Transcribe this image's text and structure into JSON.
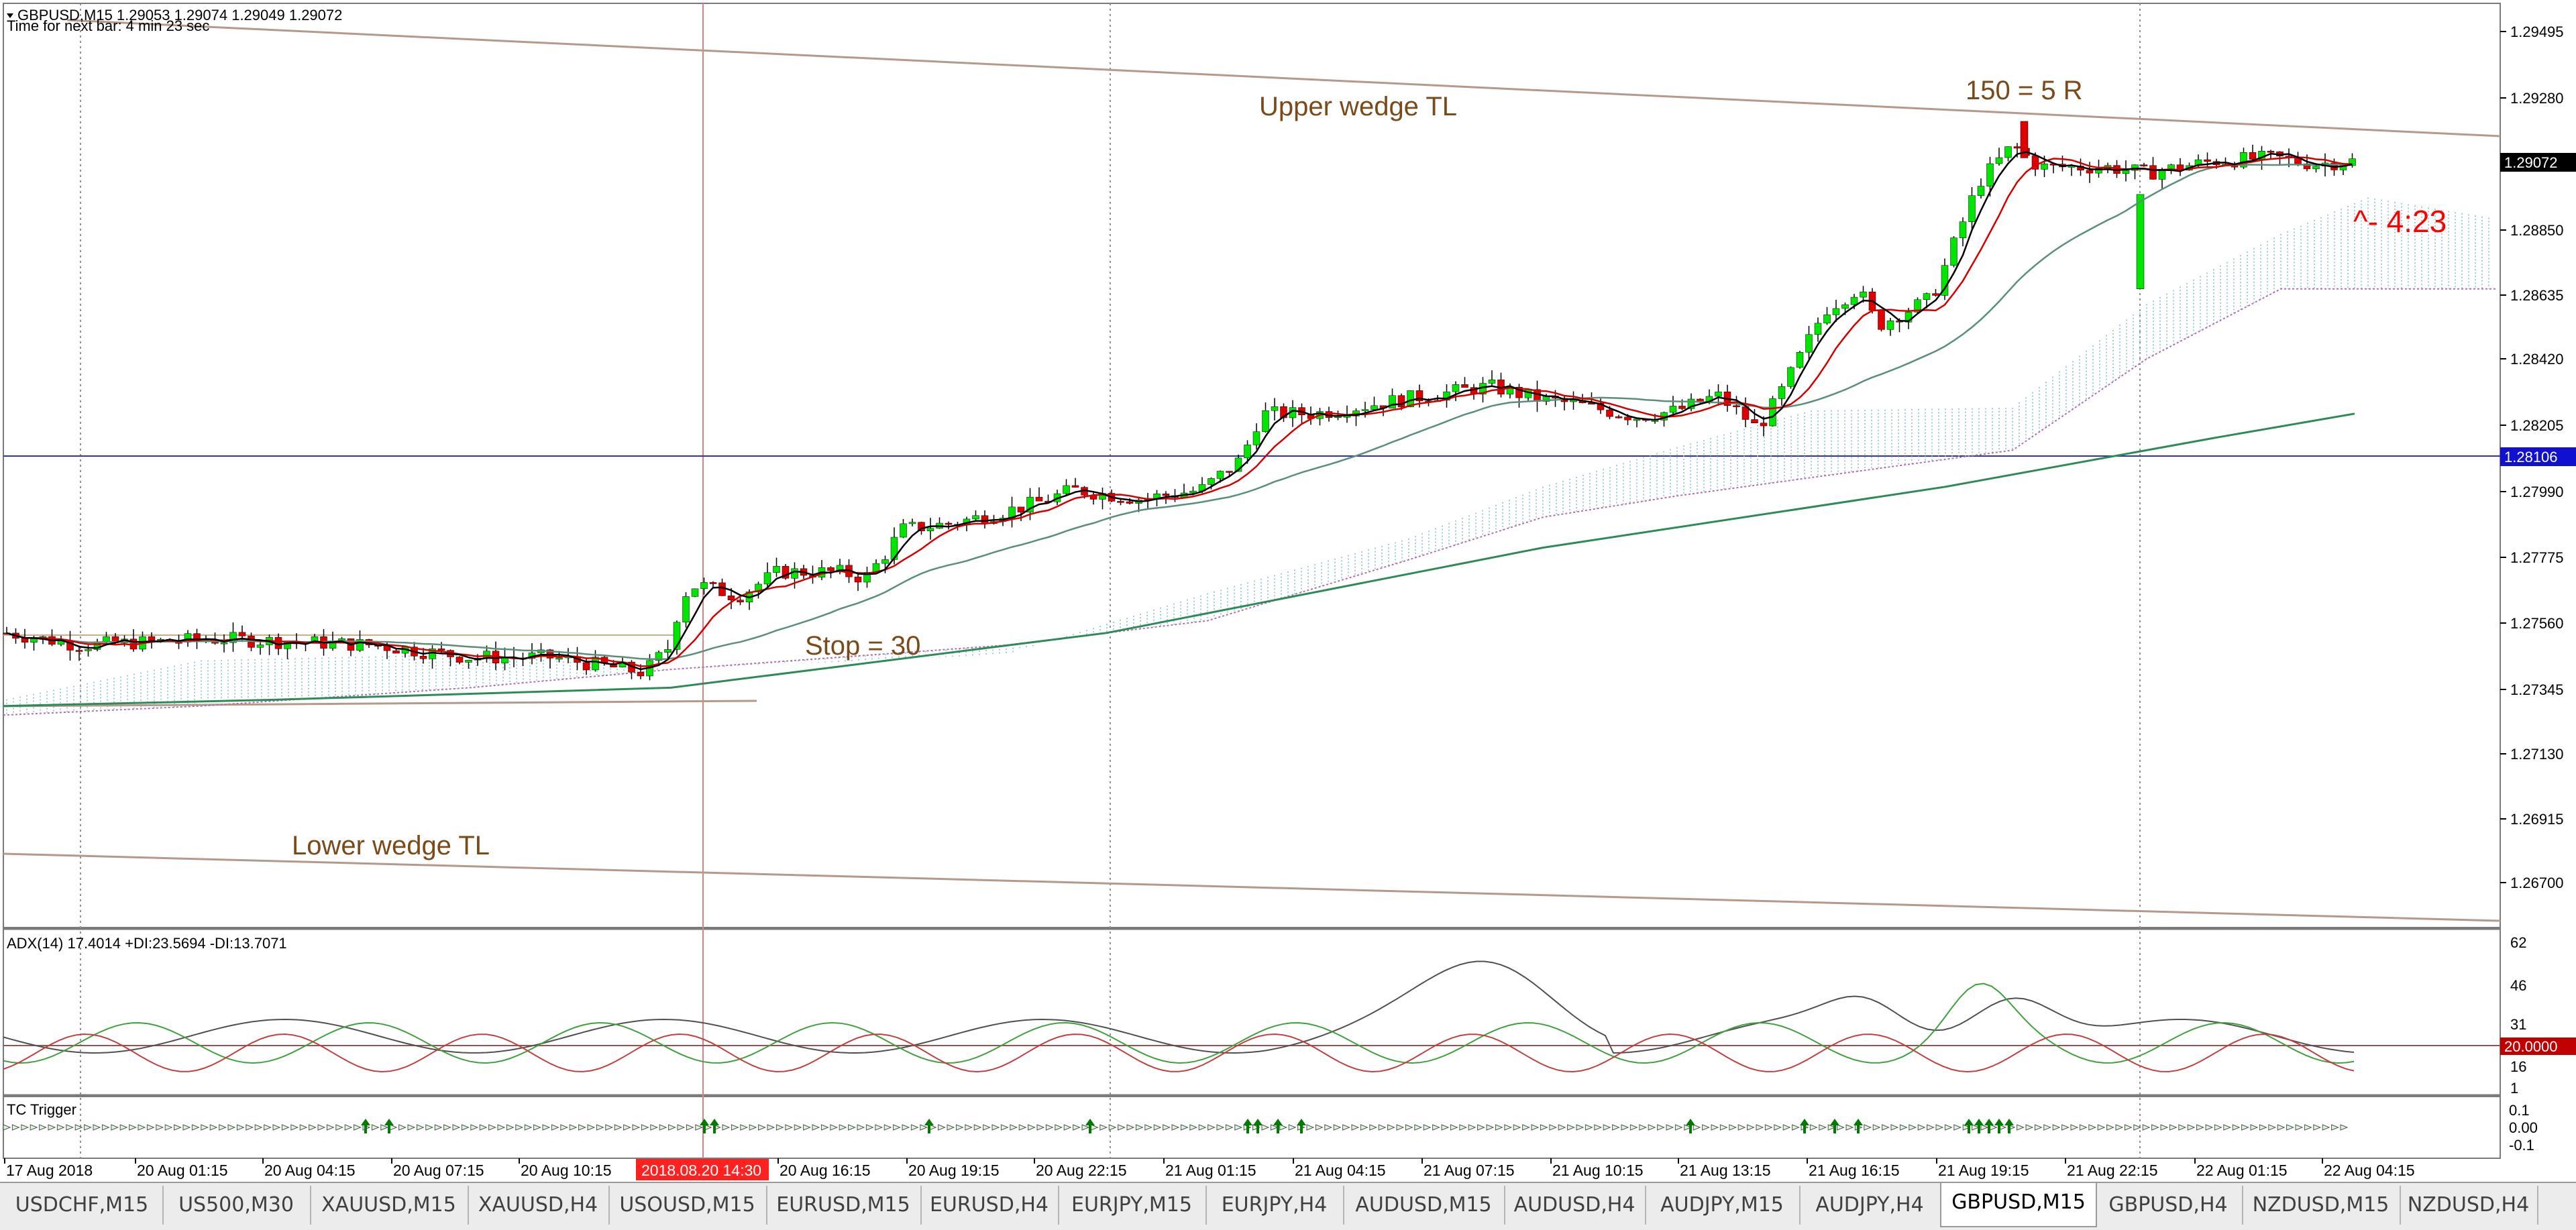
{
  "colors": {
    "bull": "#00e600",
    "bear": "#e00000",
    "ma_fast": "#000000",
    "ma_mid": "#d40000",
    "ma_slow": "#5a8f7b",
    "ma_long": "#2e8b57",
    "cloud": "#7fbfcf",
    "cloud_lower": "#b070b0",
    "wedge": "#b59a8a",
    "annotation": "#7a4a1a",
    "timer": "#ff0000",
    "hline": "#3030c0",
    "adx_level": "#a05050"
  },
  "header": {
    "symbol_line": "GBPUSD,M15  1.29053 1.29074 1.29049 1.29072",
    "timer_line": "Time for next bar: 4 min 23 sec"
  },
  "annotations": {
    "upper_wedge": "Upper wedge TL",
    "lower_wedge": "Lower wedge TL",
    "target": "150 = 5 R",
    "stop": "Stop = 30",
    "countdown": "^- 4:23"
  },
  "price_axis": {
    "ticks": [
      "1.29495",
      "1.29280",
      "1.28850",
      "1.28635",
      "1.28420",
      "1.28205",
      "1.27990",
      "1.27775",
      "1.27560",
      "1.27345",
      "1.27130",
      "1.26915",
      "1.26700"
    ],
    "current_price": "1.29072",
    "hline_price": "1.28106"
  },
  "time_axis": {
    "labels": [
      "17 Aug 2018",
      "20 Aug 01:15",
      "20 Aug 04:15",
      "20 Aug 07:15",
      "20 Aug 10:15",
      "2018.08.20 14:30",
      "20 Aug 16:15",
      "20 Aug 19:15",
      "20 Aug 22:15",
      "21 Aug 01:15",
      "21 Aug 04:15",
      "21 Aug 07:15",
      "21 Aug 10:15",
      "21 Aug 13:15",
      "21 Aug 16:15",
      "21 Aug 19:15",
      "21 Aug 22:15",
      "22 Aug 01:15",
      "22 Aug 04:15"
    ],
    "highlighted_label": "2018.08.20 14:30"
  },
  "adx_panel": {
    "title": "ADX(14) 17.4014 +DI:23.5694 -DI:13.7071",
    "ticks": [
      "62",
      "46",
      "31",
      "16",
      "1"
    ],
    "level_label": "20.0000"
  },
  "tc_panel": {
    "title": "TC Trigger",
    "ticks": [
      "0.1",
      "0.00",
      "-0.1"
    ]
  },
  "tabs": [
    {
      "label": "USDCHF,M15"
    },
    {
      "label": "US500,M30"
    },
    {
      "label": "XAUUSD,M15"
    },
    {
      "label": "XAUUSD,H4"
    },
    {
      "label": "USOUSD,M15"
    },
    {
      "label": "EURUSD,M15"
    },
    {
      "label": "EURUSD,H4"
    },
    {
      "label": "EURJPY,M15"
    },
    {
      "label": "EURJPY,H4"
    },
    {
      "label": "AUDUSD,M15"
    },
    {
      "label": "AUDUSD,H4"
    },
    {
      "label": "AUDJPY,M15"
    },
    {
      "label": "AUDJPY,H4"
    },
    {
      "label": "GBPUSD,M15",
      "active": true
    },
    {
      "label": "GBPUSD,H4"
    },
    {
      "label": "NZDUSD,M15"
    },
    {
      "label": "NZDUSD,H4"
    }
  ]
}
